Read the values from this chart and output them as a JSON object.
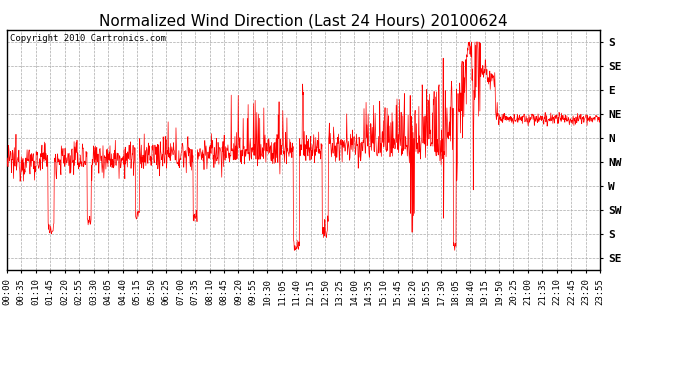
{
  "title": "Normalized Wind Direction (Last 24 Hours) 20100624",
  "copyright_text": "Copyright 2010 Cartronics.com",
  "line_color": "#FF0000",
  "background_color": "#FFFFFF",
  "grid_color": "#AAAAAA",
  "ytick_labels": [
    "S",
    "SE",
    "E",
    "NE",
    "N",
    "NW",
    "W",
    "SW",
    "S",
    "SE"
  ],
  "ytick_values": [
    9,
    8,
    7,
    6,
    5,
    4,
    3,
    2,
    1,
    0
  ],
  "ylim": [
    -0.5,
    9.5
  ],
  "xtick_labels": [
    "00:00",
    "00:35",
    "01:10",
    "01:45",
    "02:20",
    "02:55",
    "03:30",
    "04:05",
    "04:40",
    "05:15",
    "05:50",
    "06:25",
    "07:00",
    "07:35",
    "08:10",
    "08:45",
    "09:20",
    "09:55",
    "10:30",
    "11:05",
    "11:40",
    "12:15",
    "12:50",
    "13:25",
    "14:00",
    "14:35",
    "15:10",
    "15:45",
    "16:20",
    "16:55",
    "17:30",
    "18:05",
    "18:40",
    "19:15",
    "19:50",
    "20:25",
    "21:00",
    "21:35",
    "22:10",
    "22:45",
    "23:20",
    "23:55"
  ],
  "title_fontsize": 11,
  "axis_fontsize": 6.5,
  "copyright_fontsize": 6.5,
  "n_points": 1440,
  "base_direction": 4.0,
  "seed": 12345
}
